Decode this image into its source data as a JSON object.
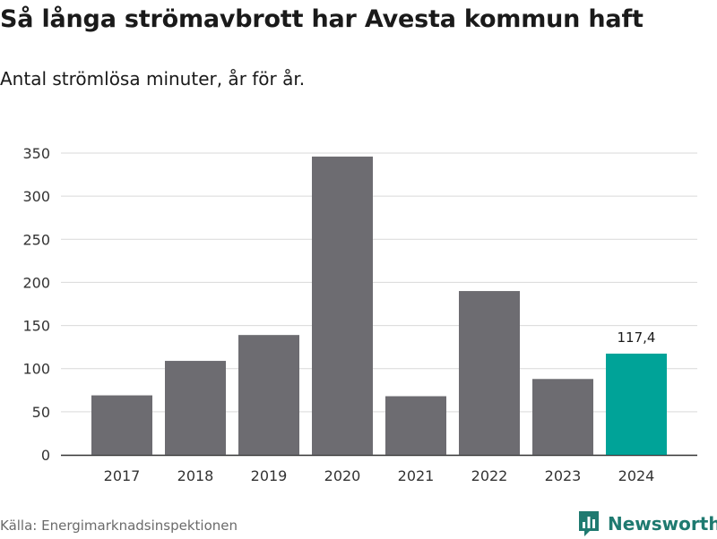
{
  "title": "Så långa strömavbrott har Avesta kommun haft",
  "subtitle": "Antal strömlösa minuter, år för år.",
  "source": "Källa: Energimarknadsinspektionen",
  "brand": {
    "name": "Newsworthy",
    "icon": "newsworthy-logo-icon",
    "color": "#1f7a70"
  },
  "colors": {
    "bar": "#6d6c71",
    "highlight": "#00a398",
    "grid": "#d9d9d9",
    "axis": "#333333"
  },
  "chart_data": {
    "type": "bar",
    "title": "Så långa strömavbrott har Avesta kommun haft",
    "subtitle": "Antal strömlösa minuter, år för år.",
    "xlabel": "",
    "ylabel": "",
    "categories": [
      "2017",
      "2018",
      "2019",
      "2020",
      "2021",
      "2022",
      "2023",
      "2024"
    ],
    "values": [
      69,
      109,
      139,
      346,
      68,
      190,
      88,
      117.4
    ],
    "highlight_index": 7,
    "data_labels": {
      "7": "117,4"
    },
    "ylim": [
      0,
      350
    ],
    "yticks": [
      0,
      50,
      100,
      150,
      200,
      250,
      300,
      350
    ],
    "grid": true,
    "legend": "none"
  }
}
